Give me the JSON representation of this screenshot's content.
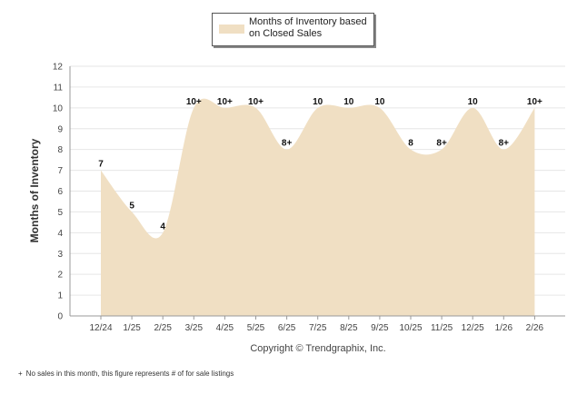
{
  "chart_data": {
    "type": "area",
    "categories": [
      "12/24",
      "1/25",
      "2/25",
      "3/25",
      "4/25",
      "5/25",
      "6/25",
      "7/25",
      "8/25",
      "9/25",
      "10/25",
      "11/25",
      "12/25",
      "1/26",
      "2/26"
    ],
    "series": [
      {
        "name": "Months of Inventory based on Closed Sales",
        "values": [
          7,
          5,
          4,
          10,
          10,
          10,
          8,
          10,
          10,
          10,
          8,
          8,
          10,
          8,
          10
        ],
        "labels": [
          "7",
          "5",
          "4",
          "10+",
          "10+",
          "10+",
          "8+",
          "10",
          "10",
          "10",
          "8",
          "8+",
          "10",
          "8+",
          "10+"
        ],
        "color": "#f0dfc3"
      }
    ],
    "ylabel": "Months of Inventory",
    "ylim": [
      0,
      12
    ],
    "yticks": [
      0,
      1,
      2,
      3,
      4,
      5,
      6,
      7,
      8,
      9,
      10,
      11,
      12
    ],
    "grid": true,
    "legend": "top-center"
  },
  "copyright": "Copyright © Trendgraphix, Inc.",
  "footnote": {
    "mark": "+",
    "text": "No sales in this month, this figure represents # of for sale listings"
  }
}
